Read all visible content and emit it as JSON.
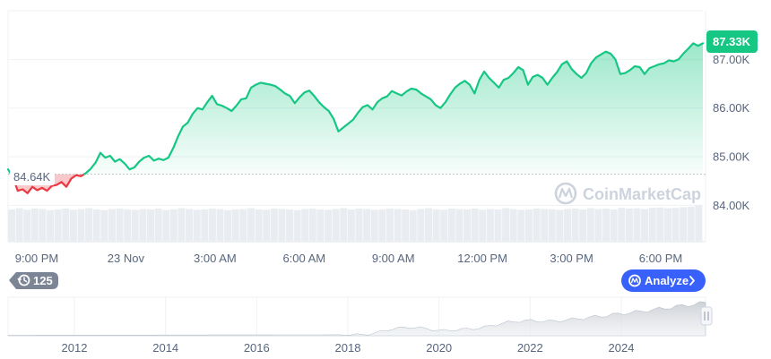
{
  "chart_data": {
    "type": "area",
    "xlabels": [
      "9:00 PM",
      "23 Nov",
      "3:00 AM",
      "6:00 AM",
      "9:00 AM",
      "12:00 PM",
      "3:00 PM",
      "6:00 PM"
    ],
    "ylabels": [
      "84.00K",
      "85.00K",
      "86.00K",
      "87.00K"
    ],
    "ylim": [
      83.4,
      88.0
    ],
    "reference_value": 84.64,
    "reference_label": "84.64K",
    "current_label": "87.33K",
    "series": [
      {
        "values": [
          84.74,
          84.58,
          84.3,
          84.33,
          84.25,
          84.38,
          84.31,
          84.36,
          84.3,
          84.4,
          84.42,
          84.48,
          84.38,
          84.55,
          84.62,
          84.6,
          84.66,
          84.75,
          84.88,
          85.08,
          84.98,
          85.02,
          84.9,
          84.95,
          84.86,
          84.74,
          84.78,
          84.9,
          84.98,
          85.02,
          84.92,
          84.96,
          84.93,
          84.98,
          85.18,
          85.42,
          85.62,
          85.7,
          85.88,
          86.0,
          85.97,
          86.12,
          86.25,
          86.08,
          86.05,
          86.0,
          85.94,
          86.05,
          86.18,
          86.2,
          86.42,
          86.48,
          86.52,
          86.5,
          86.48,
          86.45,
          86.38,
          86.3,
          86.25,
          86.1,
          86.22,
          86.32,
          86.36,
          86.25,
          86.12,
          86.02,
          85.94,
          85.78,
          85.52,
          85.6,
          85.68,
          85.76,
          85.9,
          86.02,
          86.06,
          85.97,
          86.12,
          86.2,
          86.24,
          86.35,
          86.3,
          86.26,
          86.34,
          86.4,
          86.38,
          86.3,
          86.24,
          86.18,
          86.06,
          86.0,
          86.12,
          86.28,
          86.42,
          86.5,
          86.56,
          86.48,
          86.3,
          86.58,
          86.75,
          86.62,
          86.52,
          86.42,
          86.58,
          86.62,
          86.72,
          86.84,
          86.78,
          86.48,
          86.64,
          86.68,
          86.62,
          86.48,
          86.62,
          86.74,
          86.9,
          86.96,
          86.8,
          86.7,
          86.62,
          86.72,
          86.92,
          87.04,
          87.1,
          87.16,
          87.12,
          87.0,
          86.7,
          86.72,
          86.78,
          86.86,
          86.84,
          86.7,
          86.82,
          86.86,
          86.9,
          86.92,
          86.98,
          86.96,
          87.0,
          87.12,
          87.22,
          87.33,
          87.28,
          87.33
        ]
      }
    ],
    "overview": {
      "years": [
        "2012",
        "2014",
        "2016",
        "2018",
        "2020",
        "2022",
        "2024"
      ]
    }
  },
  "volume_levels": [
    0.86,
    0.89,
    0.85,
    0.88,
    0.87,
    0.84,
    0.86,
    0.88,
    0.85,
    0.87,
    0.89,
    0.86,
    0.84,
    0.87,
    0.88,
    0.86,
    0.85,
    0.87,
    0.86,
    0.88,
    0.84,
    0.86,
    0.89,
    0.87,
    0.85,
    0.86,
    0.88,
    0.87,
    0.84,
    0.86,
    0.87,
    0.89,
    0.86,
    0.85,
    0.88,
    0.87,
    0.86,
    0.84,
    0.87,
    0.88,
    0.86,
    0.85,
    0.87,
    0.89,
    0.86,
    0.88,
    0.87,
    0.85,
    0.86,
    0.88,
    0.87,
    0.86,
    0.84,
    0.87,
    0.89,
    0.86,
    0.85,
    0.88,
    0.87,
    0.86,
    0.88,
    0.85,
    0.87,
    0.86,
    0.89,
    0.87,
    0.85,
    0.86,
    0.88,
    0.87,
    0.86,
    0.85,
    0.87,
    0.88,
    0.86,
    0.89,
    0.87,
    0.88,
    0.86,
    0.9,
    0.88,
    0.89,
    0.87,
    0.9,
    0.91,
    0.89,
    0.9,
    0.92,
    0.93,
    0.98
  ],
  "ui": {
    "brand": "CoinMarketCap",
    "event_count": "125",
    "analyze_label": "Analyze"
  },
  "colors": {
    "up": "#16c784",
    "down": "#ea3943",
    "accent_blue": "#3861fb",
    "text": "#58667e"
  }
}
